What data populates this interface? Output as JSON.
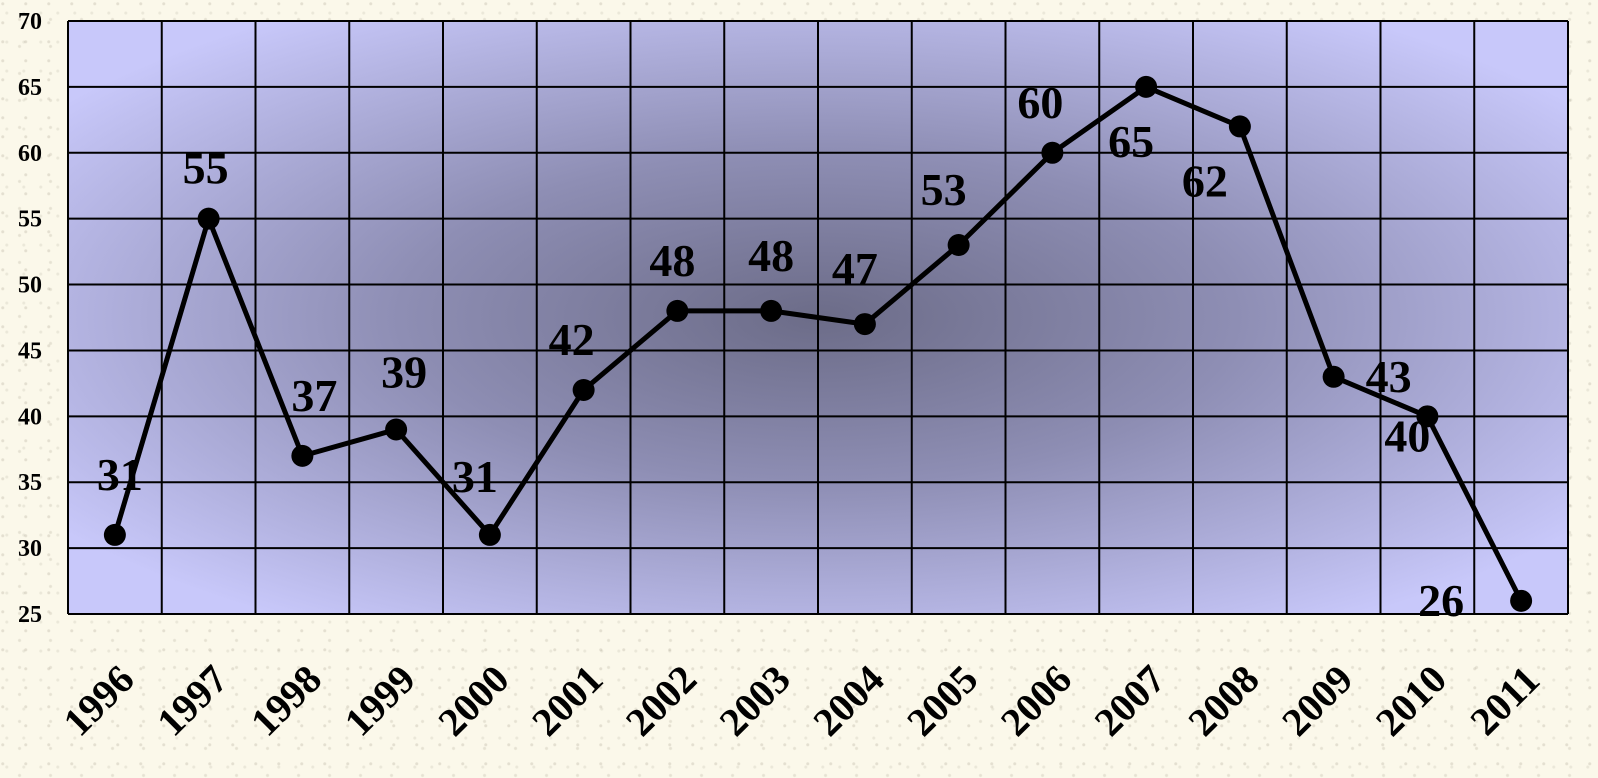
{
  "chart_data": {
    "type": "line",
    "title": "",
    "xlabel": "",
    "ylabel": "",
    "categories": [
      "1996",
      "1997",
      "1998",
      "1999",
      "2000",
      "2001",
      "2002",
      "2003",
      "2004",
      "2005",
      "2006",
      "2007",
      "2008",
      "2009",
      "2010",
      "2011"
    ],
    "series": [
      {
        "values": [
          31,
          55,
          37,
          39,
          31,
          42,
          48,
          48,
          47,
          53,
          60,
          65,
          62,
          43,
          40,
          26
        ]
      }
    ],
    "ylim": [
      25,
      70
    ],
    "yticks": [
      "25",
      "30",
      "35",
      "40",
      "45",
      "50",
      "55",
      "60",
      "65",
      "70"
    ],
    "grid": true,
    "data_labels": true,
    "legend": "none",
    "colors": {
      "plot_bg_outer": "#c8c8fa",
      "plot_bg_center": "#6e6e8c",
      "line": "#000000",
      "marker": "#000000",
      "page_bg": "#fbf8ea"
    }
  }
}
